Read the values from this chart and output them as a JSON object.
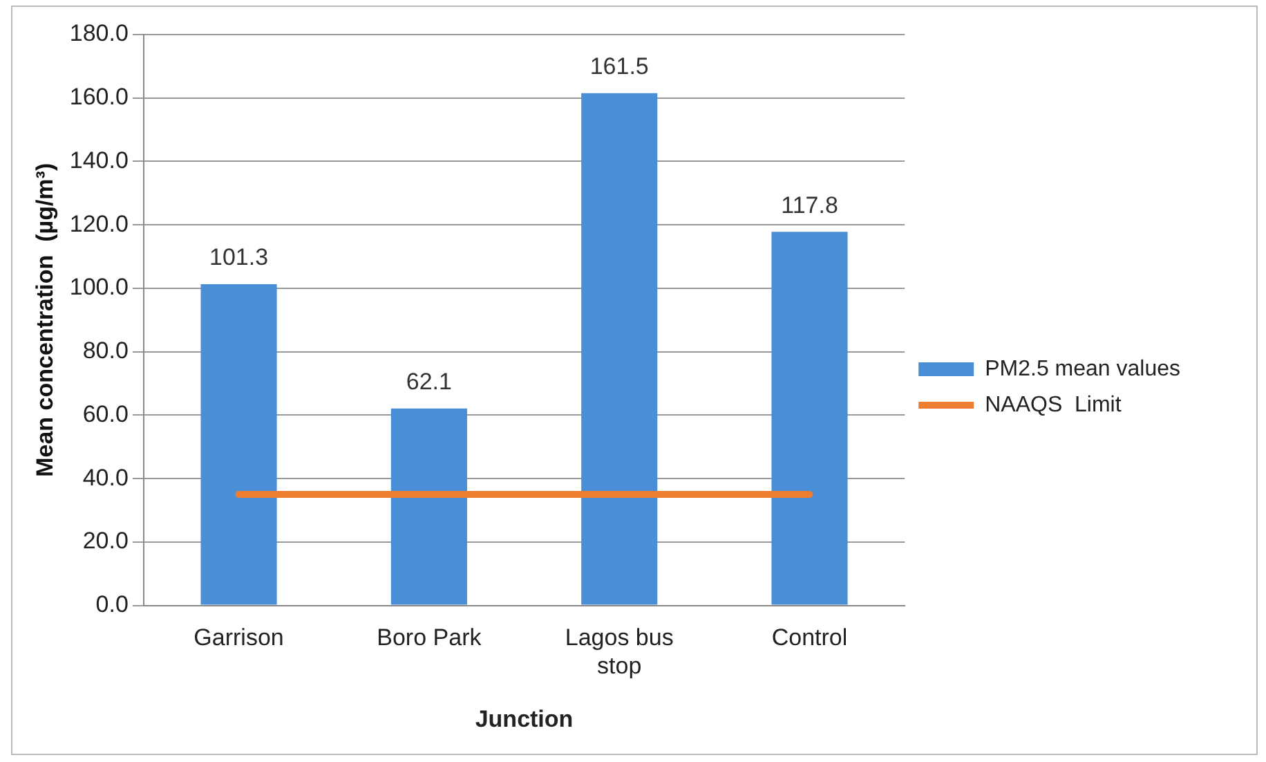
{
  "chart_data": {
    "type": "bar",
    "xlabel": "Junction",
    "ylabel": "Mean concentration  (µg/m³)",
    "categories": [
      "Garrison",
      "Boro Park",
      "Lagos bus stop",
      "Control"
    ],
    "series": [
      {
        "name": "PM2.5 mean values",
        "color": "#4a8fd6",
        "values": [
          101.3,
          62.1,
          161.5,
          117.8
        ],
        "value_labels": [
          "101.3",
          "62.1",
          "161.5",
          "117.8"
        ]
      },
      {
        "name": "NAAQS  Limit",
        "type": "line",
        "color": "#ed7d31",
        "values": [
          35,
          35,
          35,
          35
        ],
        "marker": "none"
      }
    ],
    "ylim": [
      0,
      180
    ],
    "yticks": [
      {
        "value": 0,
        "label": "0.0"
      },
      {
        "value": 20,
        "label": "20.0"
      },
      {
        "value": 40,
        "label": "40.0"
      },
      {
        "value": 60,
        "label": "60.0"
      },
      {
        "value": 80,
        "label": "80.0"
      },
      {
        "value": 100,
        "label": "100.0"
      },
      {
        "value": 120,
        "label": "120.0"
      },
      {
        "value": 140,
        "label": "140.0"
      },
      {
        "value": 160,
        "label": "160.0"
      },
      {
        "value": 180,
        "label": "180.0"
      }
    ],
    "grid": "y",
    "legend": "right"
  }
}
